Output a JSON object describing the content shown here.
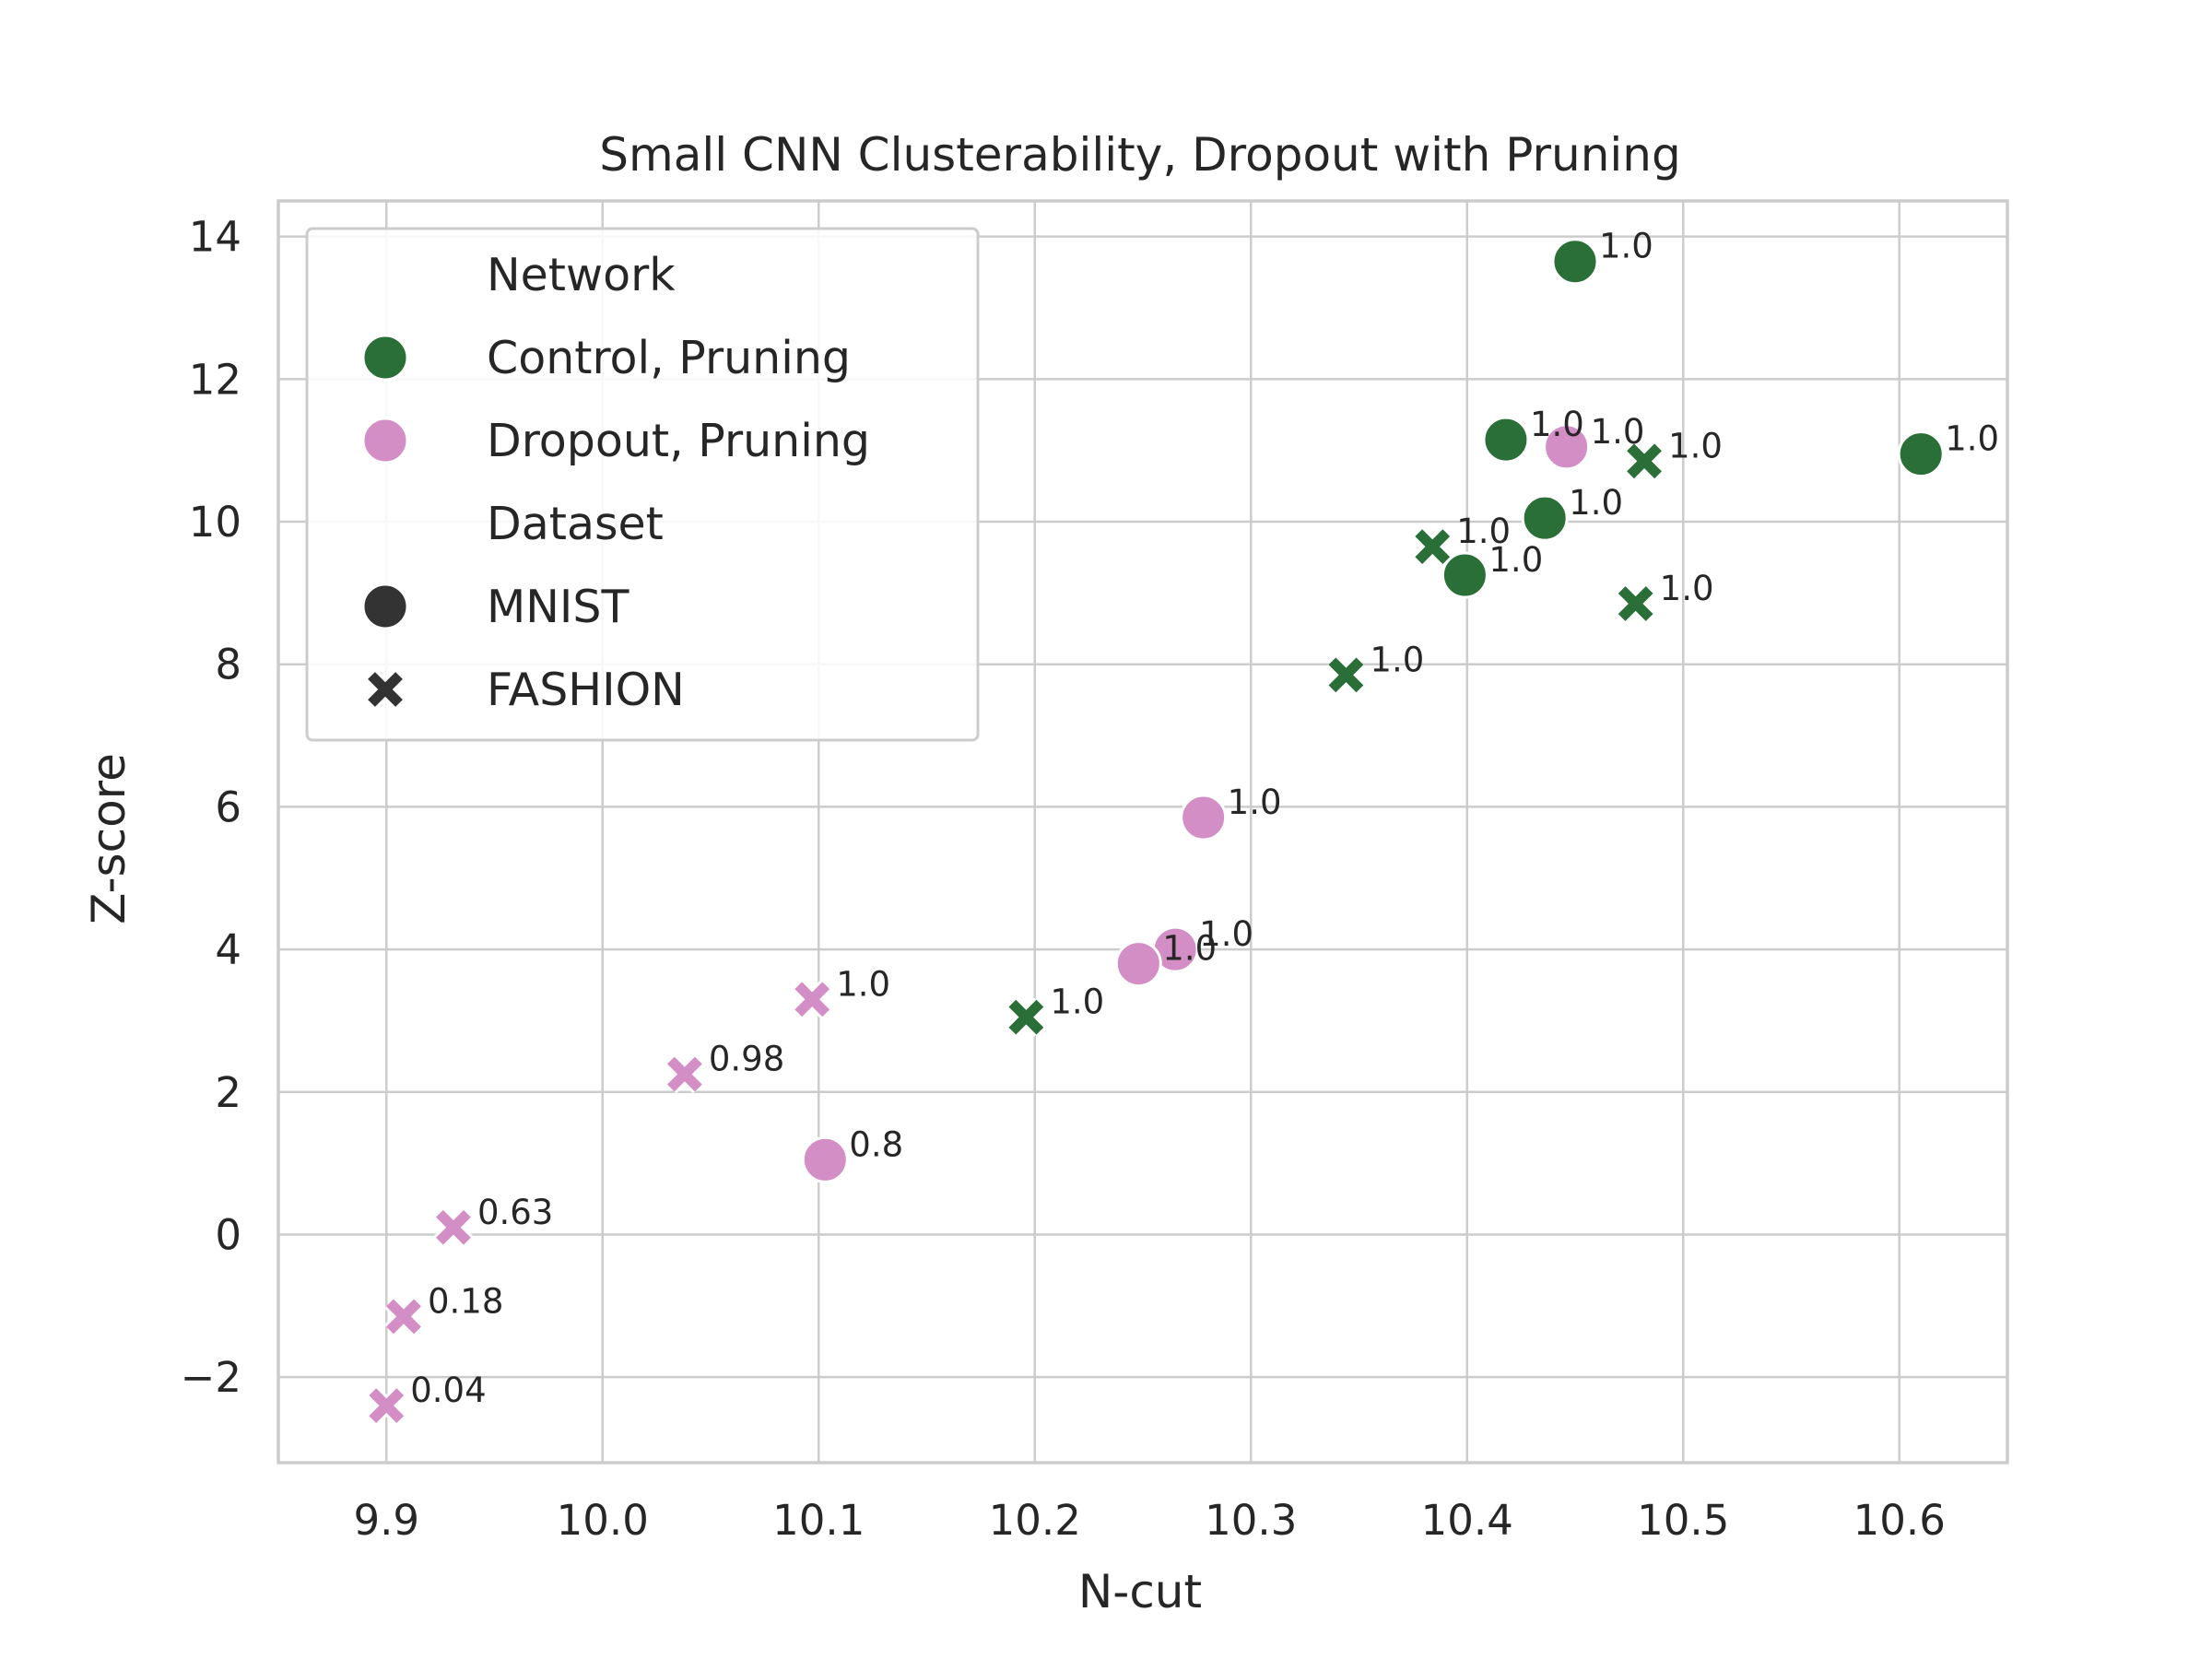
{
  "chart_data": {
    "type": "scatter",
    "title": "Small CNN Clusterability, Dropout with Pruning",
    "xlabel": "N-cut",
    "ylabel": "Z-score",
    "xlim": [
      9.85,
      10.65
    ],
    "ylim": [
      -3.2,
      14.5
    ],
    "xticks": [
      9.9,
      10.0,
      10.1,
      10.2,
      10.3,
      10.4,
      10.5,
      10.6
    ],
    "xtick_labels": [
      "9.9",
      "10.0",
      "10.1",
      "10.2",
      "10.3",
      "10.4",
      "10.5",
      "10.6"
    ],
    "yticks": [
      -2,
      0,
      2,
      4,
      6,
      8,
      10,
      12,
      14
    ],
    "ytick_labels": [
      "−2",
      "0",
      "2",
      "4",
      "6",
      "8",
      "10",
      "12",
      "14"
    ],
    "grid": true,
    "legend": {
      "placement": "top-left",
      "hue_title": "Network",
      "style_title": "Dataset",
      "hue_entries": [
        {
          "label": "Control, Pruning",
          "color": "#2a6e38"
        },
        {
          "label": "Dropout, Pruning",
          "color": "#d48ec6"
        }
      ],
      "style_entries": [
        {
          "label": "MNIST",
          "marker": "circle"
        },
        {
          "label": "FASHION",
          "marker": "x"
        }
      ],
      "marker_color": "#333333"
    },
    "colors": {
      "control": "#2a6e38",
      "dropout": "#d48ec6"
    },
    "series": [
      {
        "network": "Control, Pruning",
        "dataset": "MNIST",
        "marker": "circle",
        "color": "#2a6e38",
        "points": [
          {
            "x": 10.45,
            "y": 13.65,
            "label": "1.0"
          },
          {
            "x": 10.418,
            "y": 11.15,
            "label": "1.0"
          },
          {
            "x": 10.436,
            "y": 10.05,
            "label": "1.0"
          },
          {
            "x": 10.399,
            "y": 9.25,
            "label": "1.0"
          },
          {
            "x": 10.61,
            "y": 10.95,
            "label": "1.0"
          }
        ]
      },
      {
        "network": "Control, Pruning",
        "dataset": "FASHION",
        "marker": "x",
        "color": "#2a6e38",
        "points": [
          {
            "x": 10.482,
            "y": 10.85,
            "label": "1.0"
          },
          {
            "x": 10.384,
            "y": 9.65,
            "label": "1.0"
          },
          {
            "x": 10.478,
            "y": 8.85,
            "label": "1.0"
          },
          {
            "x": 10.344,
            "y": 7.85,
            "label": "1.0"
          },
          {
            "x": 10.196,
            "y": 3.05,
            "label": "1.0"
          }
        ]
      },
      {
        "network": "Dropout, Pruning",
        "dataset": "MNIST",
        "marker": "circle",
        "color": "#d48ec6",
        "points": [
          {
            "x": 10.446,
            "y": 11.05,
            "label": "1.0"
          },
          {
            "x": 10.278,
            "y": 5.85,
            "label": "1.0"
          },
          {
            "x": 10.265,
            "y": 4.0,
            "label": "1.0"
          },
          {
            "x": 10.248,
            "y": 3.8,
            "label": "1.0"
          },
          {
            "x": 10.103,
            "y": 1.05,
            "label": "0.8"
          }
        ]
      },
      {
        "network": "Dropout, Pruning",
        "dataset": "FASHION",
        "marker": "x",
        "color": "#d48ec6",
        "points": [
          {
            "x": 10.097,
            "y": 3.3,
            "label": "1.0"
          },
          {
            "x": 10.038,
            "y": 2.25,
            "label": "0.98"
          },
          {
            "x": 9.931,
            "y": 0.1,
            "label": "0.63"
          },
          {
            "x": 9.908,
            "y": -1.15,
            "label": "0.18"
          },
          {
            "x": 9.9,
            "y": -2.4,
            "label": "0.04"
          }
        ]
      }
    ]
  }
}
